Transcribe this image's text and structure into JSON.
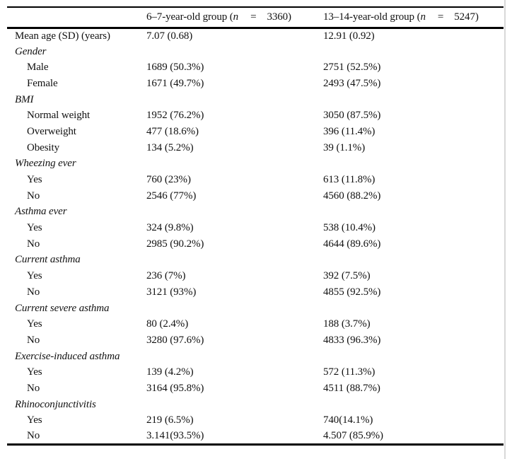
{
  "page": {
    "background_color": "#ffffff",
    "text_color": "#111111",
    "rule_color": "#000000",
    "scan_edge_color": "#d8d8d8"
  },
  "table": {
    "header": {
      "label_column": "",
      "group1": {
        "prefix": "6–7-year-old group (",
        "var": "n",
        "eq": "=",
        "count": "3360)"
      },
      "group2": {
        "prefix": "13–14-year-old group (",
        "var": "n",
        "eq": "=",
        "count": "5247)"
      }
    },
    "rows": [
      {
        "label": "Mean age (SD) (years)",
        "type": "item-flush",
        "col1": "7.07 (0.68)",
        "col2": "12.91 (0.92)"
      },
      {
        "label": "Gender",
        "type": "section",
        "col1": "",
        "col2": ""
      },
      {
        "label": "Male",
        "type": "item",
        "col1": "1689 (50.3%)",
        "col2": "2751 (52.5%)"
      },
      {
        "label": "Female",
        "type": "item",
        "col1": "1671 (49.7%)",
        "col2": "2493 (47.5%)"
      },
      {
        "label": "BMI",
        "type": "section",
        "col1": "",
        "col2": ""
      },
      {
        "label": "Normal weight",
        "type": "item",
        "col1": "1952 (76.2%)",
        "col2": "3050 (87.5%)"
      },
      {
        "label": "Overweight",
        "type": "item",
        "col1": "477 (18.6%)",
        "col2": "396 (11.4%)"
      },
      {
        "label": "Obesity",
        "type": "item",
        "col1": "134 (5.2%)",
        "col2": "39 (1.1%)"
      },
      {
        "label": "Wheezing ever",
        "type": "section",
        "col1": "",
        "col2": ""
      },
      {
        "label": "Yes",
        "type": "item",
        "col1": "760 (23%)",
        "col2": "613 (11.8%)"
      },
      {
        "label": "No",
        "type": "item",
        "col1": "2546 (77%)",
        "col2": "4560 (88.2%)"
      },
      {
        "label": "Asthma ever",
        "type": "section",
        "col1": "",
        "col2": ""
      },
      {
        "label": "Yes",
        "type": "item",
        "col1": "324 (9.8%)",
        "col2": "538 (10.4%)"
      },
      {
        "label": "No",
        "type": "item",
        "col1": "2985 (90.2%)",
        "col2": "4644 (89.6%)"
      },
      {
        "label": "Current asthma",
        "type": "section",
        "col1": "",
        "col2": ""
      },
      {
        "label": "Yes",
        "type": "item",
        "col1": "236 (7%)",
        "col2": "392 (7.5%)"
      },
      {
        "label": "No",
        "type": "item",
        "col1": "3121 (93%)",
        "col2": "4855 (92.5%)"
      },
      {
        "label": "Current severe asthma",
        "type": "section",
        "col1": "",
        "col2": ""
      },
      {
        "label": "Yes",
        "type": "item",
        "col1": "80 (2.4%)",
        "col2": "188 (3.7%)"
      },
      {
        "label": "No",
        "type": "item",
        "col1": "3280 (97.6%)",
        "col2": "4833 (96.3%)"
      },
      {
        "label": "Exercise-induced asthma",
        "type": "section",
        "col1": "",
        "col2": ""
      },
      {
        "label": "Yes",
        "type": "item",
        "col1": "139 (4.2%)",
        "col2": "572 (11.3%)"
      },
      {
        "label": "No",
        "type": "item",
        "col1": "3164 (95.8%)",
        "col2": "4511 (88.7%)"
      },
      {
        "label": "Rhinoconjunctivitis",
        "type": "section",
        "col1": "",
        "col2": ""
      },
      {
        "label": "Yes",
        "type": "item",
        "col1": "219 (6.5%)",
        "col2": "740(14.1%)"
      },
      {
        "label": "No",
        "type": "item",
        "col1": "3.141(93.5%)",
        "col2": "4.507 (85.9%)"
      }
    ]
  }
}
